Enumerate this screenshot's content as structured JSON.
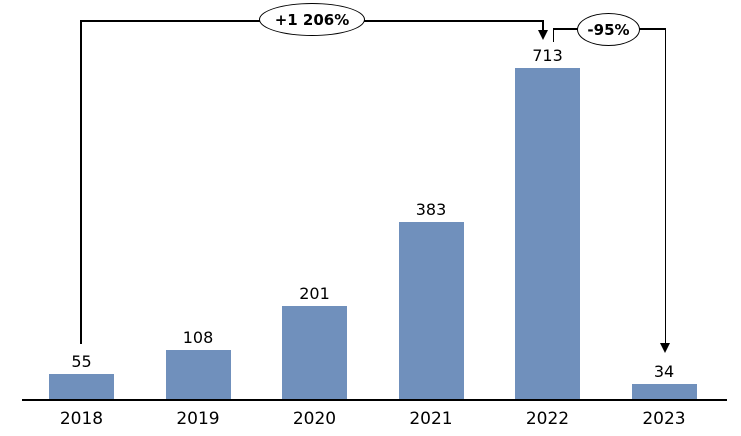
{
  "chart_data": {
    "type": "bar",
    "categories": [
      "2018",
      "2019",
      "2020",
      "2021",
      "2022",
      "2023"
    ],
    "values": [
      55,
      108,
      201,
      383,
      713,
      34
    ],
    "data_labels": [
      "55",
      "108",
      "201",
      "383",
      "713",
      "34"
    ],
    "title": "",
    "xlabel": "",
    "ylabel": "",
    "ylim": [
      0,
      760
    ],
    "grid": false,
    "legend": false,
    "bar_color": "#7090BC",
    "annotations": [
      {
        "label": "+1 206%",
        "from": "2018",
        "to": "2022",
        "shape": "oval-callout-with-arrow"
      },
      {
        "label": "-95%",
        "from": "2022",
        "to": "2023",
        "shape": "oval-callout-with-arrow"
      }
    ]
  },
  "colors": {
    "bar": "#7090BC",
    "annotation_line": "#000000",
    "axis_line": "#000000",
    "background": "#FFFFFF",
    "text": "#000000"
  }
}
